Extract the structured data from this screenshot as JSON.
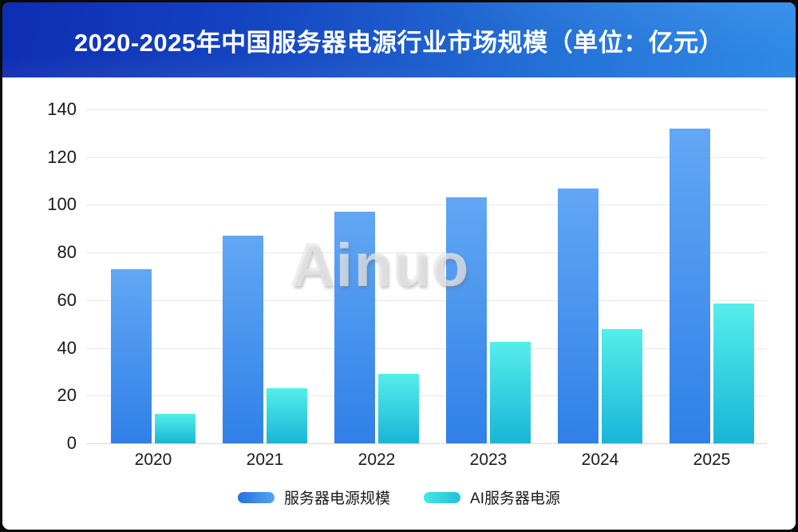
{
  "watermark": {
    "text": "Ainuo"
  },
  "colors": {
    "header_gradient_left": "#0E2DB2",
    "header_gradient_right": "#2F8AE6",
    "grid_line": "#e7e7e7",
    "axis_line": "#d9d9d9",
    "text": "#1a1a1a"
  },
  "chart_data": {
    "type": "bar",
    "title": "2020-2025年中国服务器电源行业市场规模（单位：亿元）",
    "categories": [
      "2020",
      "2021",
      "2022",
      "2023",
      "2024",
      "2025"
    ],
    "series": [
      {
        "name": "服务器电源规模",
        "values": [
          73,
          87,
          97,
          103,
          107,
          132
        ],
        "color_top": "#62A7F4",
        "color_bottom": "#2F80E8",
        "legend_gradient": [
          "#2273DF",
          "#54A3F3"
        ]
      },
      {
        "name": "AI服务器电源",
        "values": [
          12.5,
          23,
          29,
          42.5,
          48,
          58.5
        ],
        "color_top": "#55EEEA",
        "color_bottom": "#19B5D8",
        "legend_gradient": [
          "#3FE8E8",
          "#22C1DB"
        ]
      }
    ],
    "xlabel": "",
    "ylabel": "",
    "ylim": [
      0,
      140
    ],
    "yticks": [
      0,
      20,
      40,
      60,
      80,
      100,
      120,
      140
    ],
    "grid": true,
    "legend_position": "bottom"
  }
}
